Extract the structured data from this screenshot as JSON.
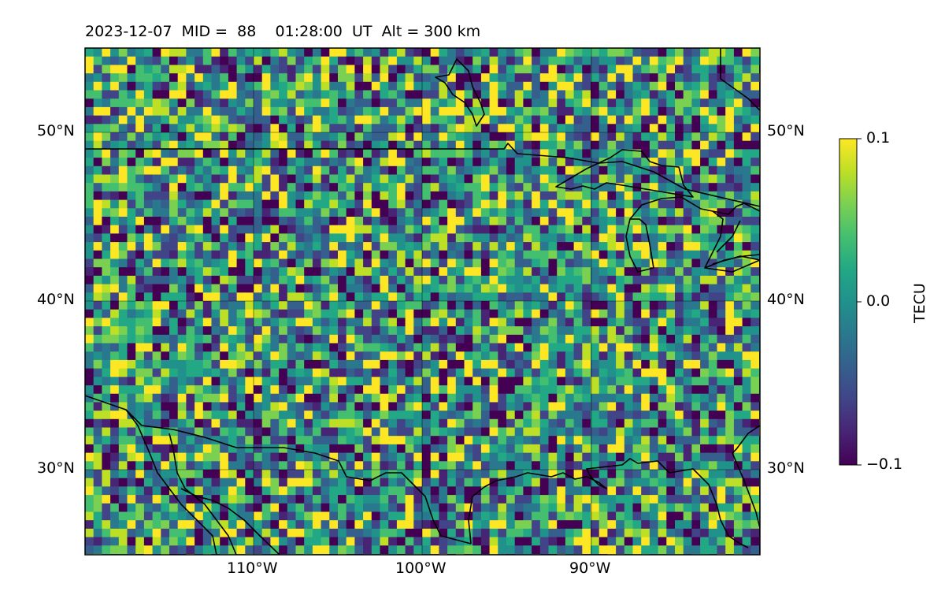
{
  "header": {
    "date": "2023-12-07",
    "mid": "MID =  88",
    "time": "01:28:00  UT",
    "alt": "Alt = 300 km"
  },
  "map": {
    "projection": "plate-carree",
    "lon_range": [
      -120,
      -80
    ],
    "lat_range": [
      25,
      55
    ],
    "gridlines": true,
    "lat_ticks_left": [
      "50°N",
      "40°N",
      "30°N"
    ],
    "lat_ticks_right": [
      "50°N",
      "40°N",
      "30°N"
    ],
    "lon_ticks": [
      "110°W",
      "100°W",
      "90°W"
    ],
    "features": [
      "coastlines",
      "borders"
    ]
  },
  "colorbar": {
    "label": "TECU",
    "colormap": "viridis",
    "vmin": -0.1,
    "vmax": 0.1,
    "tick_labels": [
      "0.1",
      "0.0",
      "−0.1"
    ]
  },
  "colors": {
    "viridis_low": "#440154",
    "viridis_mid": "#21918c",
    "viridis_high": "#fde725",
    "line": "#000000"
  }
}
